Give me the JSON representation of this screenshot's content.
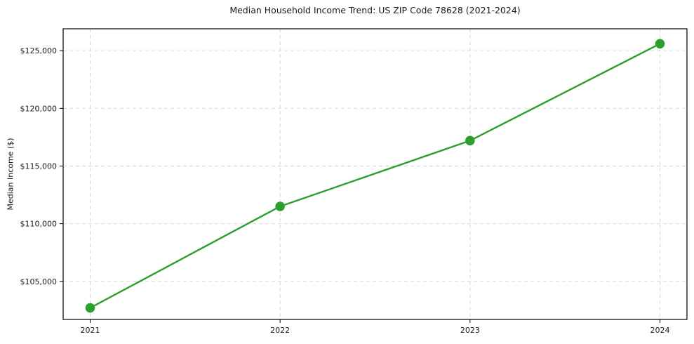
{
  "figure": {
    "background": "#ffffff"
  },
  "chart_data": {
    "type": "line",
    "title": "Median Household Income Trend: US ZIP Code 78628 (2021-2024)",
    "xlabel": "",
    "ylabel": "Median Income ($)",
    "categories": [
      "2021",
      "2022",
      "2023",
      "2024"
    ],
    "series": [
      {
        "name": "Median Household Income",
        "values": [
          102700,
          111500,
          117200,
          125600
        ],
        "color": "#2ca02c",
        "marker": "circle"
      }
    ],
    "yticks": [
      105000,
      110000,
      115000,
      120000,
      125000
    ],
    "ytick_labels": [
      "$105,000",
      "$110,000",
      "$115,000",
      "$120,000",
      "$125,000"
    ],
    "ylim": [
      101700,
      126900
    ],
    "grid": true,
    "grid_style": "dashed",
    "grid_color": "#d4d4d4",
    "axis_color": "#000000",
    "text_color": "#1a1a1a",
    "legend_position": "none"
  }
}
